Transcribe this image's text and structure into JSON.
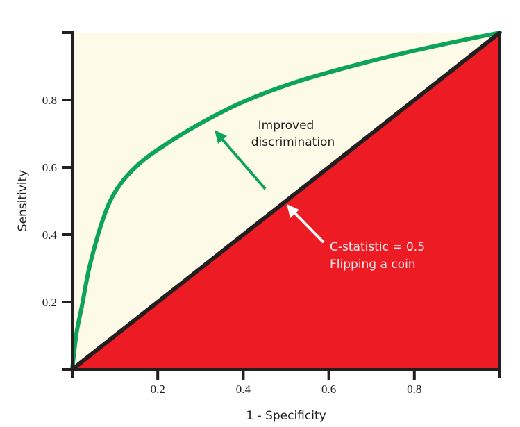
{
  "chart_data": {
    "type": "line",
    "title": "",
    "xlabel": "1 - Specificity",
    "ylabel": "Sensitivity",
    "xlim": [
      0,
      1
    ],
    "ylim": [
      0,
      1
    ],
    "grid": false,
    "x_ticks": [
      "0.2",
      "0.4",
      "0.6",
      "0.8"
    ],
    "y_ticks": [
      "0.2",
      "0.4",
      "0.6",
      "0.8"
    ],
    "series": [
      {
        "name": "ROC curve (improved discrimination)",
        "color": "#0da35a",
        "x": [
          0,
          0.01,
          0.023,
          0.042,
          0.075,
          0.107,
          0.156,
          0.221,
          0.302,
          0.399,
          0.513,
          0.643,
          0.805,
          1.0
        ],
        "y": [
          0,
          0.107,
          0.19,
          0.313,
          0.457,
          0.54,
          0.61,
          0.67,
          0.732,
          0.794,
          0.849,
          0.897,
          0.948,
          1.0
        ]
      },
      {
        "name": "Reference line (C-statistic = 0.5)",
        "color": "#231f20",
        "x": [
          0,
          1
        ],
        "y": [
          0,
          1
        ]
      }
    ],
    "regions": {
      "above_diagonal_fill": "#fdfbe8",
      "below_diagonal_fill": "#ed1c24"
    },
    "annotations": [
      {
        "lines": [
          "Improved",
          "discrimination"
        ],
        "arrow_to": [
          0.33,
          0.7
        ],
        "color": "#0da35a"
      },
      {
        "lines": [
          "C-statistic = 0.5",
          "Flipping a coin"
        ],
        "arrow_to": [
          0.5,
          0.5
        ],
        "color": "#ffffff"
      }
    ]
  }
}
